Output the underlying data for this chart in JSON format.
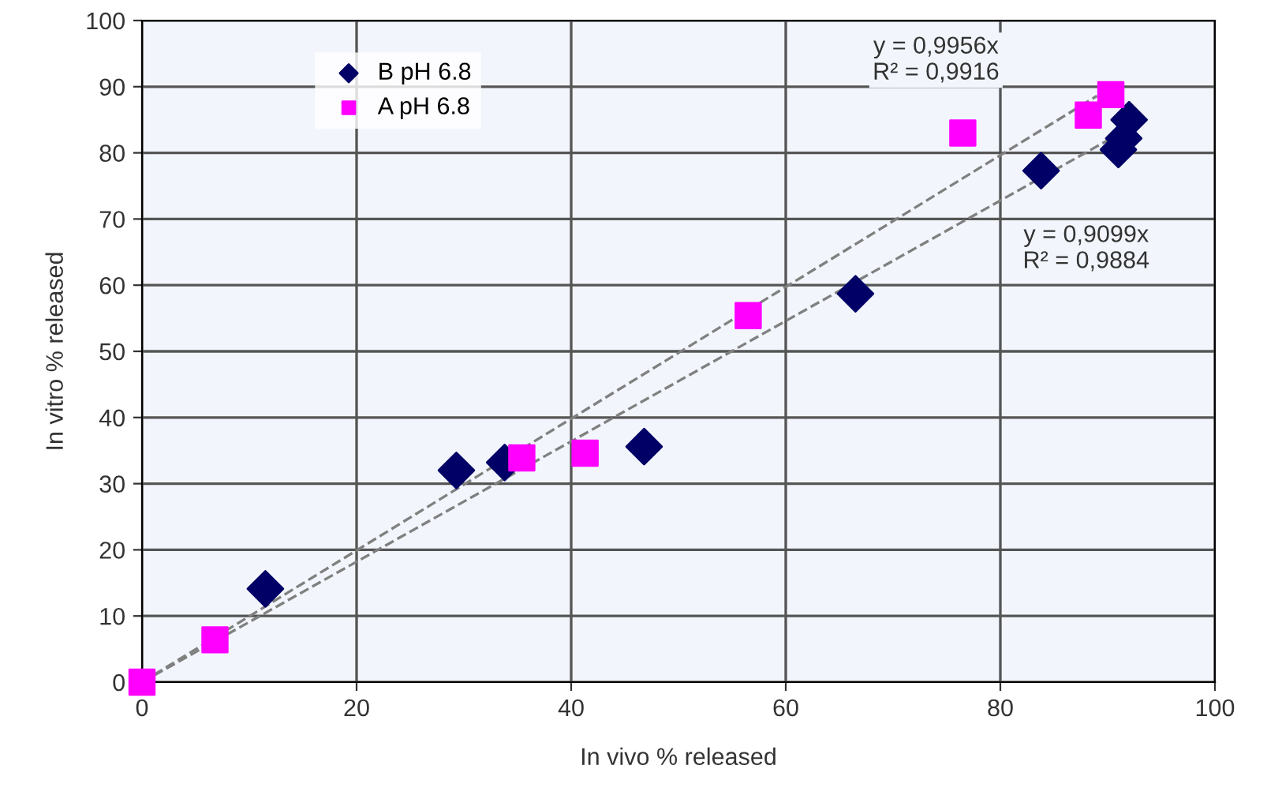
{
  "chart_data": {
    "type": "scatter",
    "xlabel": "In vivo % released",
    "ylabel": "In vitro % released",
    "xlim": [
      0,
      100
    ],
    "ylim": [
      0,
      100
    ],
    "xticks": [
      0,
      20,
      40,
      60,
      80,
      100
    ],
    "yticks": [
      0,
      10,
      20,
      30,
      40,
      50,
      60,
      70,
      80,
      90,
      100
    ],
    "grid": true,
    "legend": "top left",
    "series": [
      {
        "name": "B pH 6.8",
        "color": "#000066",
        "marker": "diamond",
        "x": [
          11.5,
          29.3,
          33.8,
          46.8,
          66.5,
          83.8,
          91,
          91.5,
          92
        ],
        "values": [
          14.1,
          32,
          33.2,
          35.6,
          58.7,
          77.3,
          80.5,
          82.2,
          85
        ]
      },
      {
        "name": "A pH 6.8",
        "color": "#ff00ff",
        "marker": "square",
        "x": [
          0,
          6.8,
          35.4,
          41.3,
          56.5,
          76.5,
          88.2,
          90.3
        ],
        "values": [
          0,
          6.4,
          33.9,
          34.6,
          55.4,
          83,
          85.7,
          88.8
        ]
      },
      {
        "type": "line",
        "color": "#808080",
        "line_style": "dashed",
        "x": [
          0,
          89
        ],
        "values": [
          0,
          88.6
        ]
      },
      {
        "type": "line",
        "color": "#808080",
        "line_style": "dashed",
        "x": [
          0,
          91
        ],
        "values": [
          0,
          82.8
        ]
      }
    ],
    "annotations": [
      "y = 0,9956x\nR² = 0,9916",
      "y = 0,9099x\nR² = 0,9884"
    ]
  }
}
